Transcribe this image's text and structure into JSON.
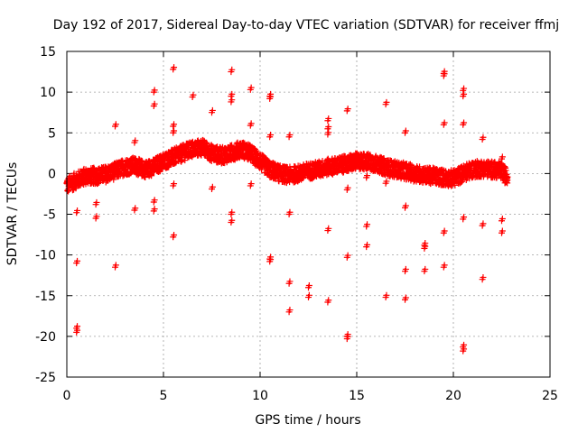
{
  "chart_data": {
    "type": "scatter",
    "title": "Day 192 of 2017, Sidereal Day-to-day VTEC variation (SDTVAR) for receiver ffmj",
    "xlabel": "GPS time / hours",
    "ylabel": "SDTVAR / TECUs",
    "xlim": [
      0,
      25
    ],
    "ylim": [
      -25,
      15
    ],
    "xticks": [
      0,
      5,
      10,
      15,
      20,
      25
    ],
    "yticks": [
      -25,
      -20,
      -15,
      -10,
      -5,
      0,
      5,
      10,
      15
    ],
    "xtick_labels": [
      "0",
      "5",
      "10",
      "15",
      "20",
      "25"
    ],
    "ytick_labels": [
      "-25",
      "-20",
      "-15",
      "-10",
      "-5",
      "0",
      "5",
      "10",
      "15"
    ],
    "grid": true,
    "marker": "plus",
    "color": "#ff0000",
    "trend": [
      [
        0.0,
        -1.5
      ],
      [
        0.5,
        -0.8
      ],
      [
        1.0,
        -0.3
      ],
      [
        1.5,
        -0.3
      ],
      [
        2.0,
        -0.1
      ],
      [
        2.5,
        0.3
      ],
      [
        3.0,
        0.8
      ],
      [
        3.5,
        1.0
      ],
      [
        4.0,
        0.5
      ],
      [
        4.5,
        0.8
      ],
      [
        5.0,
        1.5
      ],
      [
        5.5,
        2.0
      ],
      [
        6.0,
        2.5
      ],
      [
        6.5,
        3.0
      ],
      [
        7.0,
        3.2
      ],
      [
        7.5,
        2.5
      ],
      [
        8.0,
        2.2
      ],
      [
        8.5,
        2.5
      ],
      [
        9.0,
        3.0
      ],
      [
        9.5,
        2.5
      ],
      [
        10.0,
        1.5
      ],
      [
        10.5,
        0.5
      ],
      [
        11.0,
        0.0
      ],
      [
        11.5,
        -0.2
      ],
      [
        12.0,
        0.0
      ],
      [
        12.5,
        0.3
      ],
      [
        13.0,
        0.5
      ],
      [
        13.5,
        0.8
      ],
      [
        14.0,
        1.0
      ],
      [
        14.5,
        1.2
      ],
      [
        15.0,
        1.5
      ],
      [
        15.5,
        1.5
      ],
      [
        16.0,
        1.2
      ],
      [
        16.5,
        0.8
      ],
      [
        17.0,
        0.5
      ],
      [
        17.5,
        0.3
      ],
      [
        18.0,
        0.0
      ],
      [
        18.5,
        -0.2
      ],
      [
        19.0,
        -0.3
      ],
      [
        19.5,
        -0.5
      ],
      [
        20.0,
        -0.6
      ],
      [
        20.5,
        0.0
      ],
      [
        21.0,
        0.5
      ],
      [
        21.5,
        0.6
      ],
      [
        22.0,
        0.5
      ],
      [
        22.5,
        0.3
      ],
      [
        22.8,
        -0.5
      ]
    ],
    "outliers": [
      [
        0.5,
        -4.8
      ],
      [
        0.5,
        -11.0
      ],
      [
        0.5,
        -19.0
      ],
      [
        0.5,
        -19.5
      ],
      [
        1.5,
        -3.8
      ],
      [
        1.5,
        -5.5
      ],
      [
        2.5,
        5.8
      ],
      [
        2.5,
        -11.5
      ],
      [
        3.5,
        3.8
      ],
      [
        3.5,
        -4.5
      ],
      [
        4.5,
        10.0
      ],
      [
        4.5,
        8.3
      ],
      [
        4.5,
        -3.5
      ],
      [
        4.5,
        -4.6
      ],
      [
        5.5,
        12.8
      ],
      [
        5.5,
        5.8
      ],
      [
        5.5,
        5.0
      ],
      [
        5.5,
        -1.5
      ],
      [
        5.5,
        -7.8
      ],
      [
        6.5,
        9.4
      ],
      [
        7.5,
        7.5
      ],
      [
        7.5,
        -1.9
      ],
      [
        8.5,
        12.5
      ],
      [
        8.5,
        9.5
      ],
      [
        8.5,
        8.8
      ],
      [
        8.5,
        -5.0
      ],
      [
        8.5,
        -6.0
      ],
      [
        9.5,
        10.3
      ],
      [
        9.5,
        5.9
      ],
      [
        9.5,
        -1.5
      ],
      [
        10.5,
        9.5
      ],
      [
        10.5,
        9.2
      ],
      [
        10.5,
        4.5
      ],
      [
        10.5,
        -10.5
      ],
      [
        10.5,
        -10.8
      ],
      [
        11.5,
        4.5
      ],
      [
        11.5,
        -5.0
      ],
      [
        11.5,
        -13.5
      ],
      [
        11.5,
        -17.0
      ],
      [
        12.5,
        -14.0
      ],
      [
        12.5,
        -15.2
      ],
      [
        13.5,
        6.5
      ],
      [
        13.5,
        5.5
      ],
      [
        13.5,
        4.8
      ],
      [
        13.5,
        -7.0
      ],
      [
        13.5,
        -15.8
      ],
      [
        14.5,
        7.7
      ],
      [
        14.5,
        -2.0
      ],
      [
        14.5,
        -10.3
      ],
      [
        14.5,
        -20.0
      ],
      [
        14.5,
        -20.3
      ],
      [
        15.5,
        -0.5
      ],
      [
        15.5,
        -6.5
      ],
      [
        15.5,
        -9.0
      ],
      [
        16.5,
        8.5
      ],
      [
        16.5,
        -1.2
      ],
      [
        16.5,
        -15.2
      ],
      [
        17.5,
        5.0
      ],
      [
        17.5,
        -4.2
      ],
      [
        17.5,
        -12.0
      ],
      [
        17.5,
        -15.5
      ],
      [
        18.5,
        -8.8
      ],
      [
        18.5,
        -9.2
      ],
      [
        18.5,
        -12.0
      ],
      [
        19.5,
        12.3
      ],
      [
        19.5,
        12.0
      ],
      [
        19.5,
        6.0
      ],
      [
        19.5,
        -7.3
      ],
      [
        19.5,
        -11.5
      ],
      [
        20.5,
        10.2
      ],
      [
        20.5,
        9.5
      ],
      [
        20.5,
        6.0
      ],
      [
        20.5,
        -5.6
      ],
      [
        20.5,
        -21.3
      ],
      [
        20.5,
        -21.8
      ],
      [
        21.5,
        4.2
      ],
      [
        21.5,
        -6.4
      ],
      [
        21.5,
        -13.0
      ],
      [
        22.5,
        1.8
      ],
      [
        22.5,
        -5.8
      ],
      [
        22.5,
        -7.3
      ]
    ]
  }
}
